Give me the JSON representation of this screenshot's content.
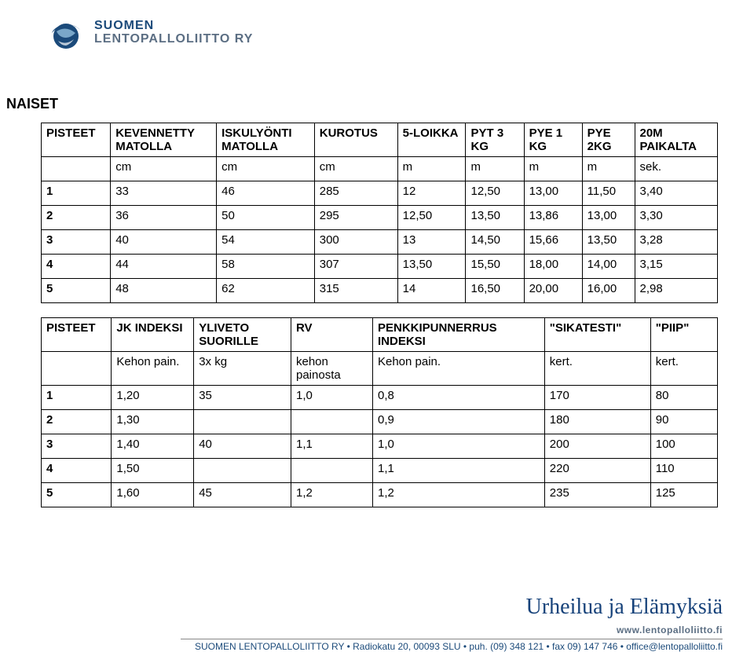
{
  "logo": {
    "line1": "SUOMEN",
    "line2": "LENTOPALLOLIITTO RY",
    "ball_outer": "#1b4a7a",
    "ball_inner": "#7aa7c9"
  },
  "section_title": "NAISET",
  "table1": {
    "columns": [
      {
        "header": "PISTEET",
        "unit": ""
      },
      {
        "header": "KEVENNETTY MATOLLA",
        "unit": "cm"
      },
      {
        "header": "ISKULYÖNTI MATOLLA",
        "unit": "cm"
      },
      {
        "header": "KUROTUS",
        "unit": "cm"
      },
      {
        "header": "5-LOIKKA",
        "unit": "m"
      },
      {
        "header": "PYT 3 KG",
        "unit": "m"
      },
      {
        "header": "PYE 1 KG",
        "unit": "m"
      },
      {
        "header": "PYE 2KG",
        "unit": "m"
      },
      {
        "header": "20M PAIKALTA",
        "unit": "sek."
      }
    ],
    "rows": [
      [
        "1",
        "33",
        "46",
        "285",
        "12",
        "12,50",
        "13,00",
        "11,50",
        "3,40"
      ],
      [
        "2",
        "36",
        "50",
        "295",
        "12,50",
        "13,50",
        "13,86",
        "13,00",
        "3,30"
      ],
      [
        "3",
        "40",
        "54",
        "300",
        "13",
        "14,50",
        "15,66",
        "13,50",
        "3,28"
      ],
      [
        "4",
        "44",
        "58",
        "307",
        "13,50",
        "15,50",
        "18,00",
        "14,00",
        "3,15"
      ],
      [
        "5",
        "48",
        "62",
        "315",
        "14",
        "16,50",
        "20,00",
        "16,00",
        "2,98"
      ]
    ]
  },
  "table2": {
    "columns": [
      {
        "header": "PISTEET",
        "unit": ""
      },
      {
        "header": "JK INDEKSI",
        "unit": "Kehon pain."
      },
      {
        "header": "YLIVETO SUORILLE",
        "unit": "3x kg"
      },
      {
        "header": "RV",
        "unit": "kehon painosta"
      },
      {
        "header": "PENKKIPUNNERRUS INDEKSI",
        "unit": "Kehon pain."
      },
      {
        "header": "\"SIKATESTI\"",
        "unit": "kert."
      },
      {
        "header": "\"PIIP\"",
        "unit": "kert."
      }
    ],
    "rows": [
      [
        "1",
        "1,20",
        "35",
        "1,0",
        "0,8",
        "170",
        "80"
      ],
      [
        "2",
        "1,30",
        "",
        "",
        "0,9",
        "180",
        "90"
      ],
      [
        "3",
        "1,40",
        "40",
        "1,1",
        "1,0",
        "200",
        "100"
      ],
      [
        "4",
        "1,50",
        "",
        "",
        "1,1",
        "220",
        "110"
      ],
      [
        "5",
        "1,60",
        "45",
        "1,2",
        "1,2",
        "235",
        "125"
      ]
    ]
  },
  "footer": {
    "script": "Urheilua ja Elämyksiä",
    "logo1": "www.lentopalloliitto.fi",
    "contact": "SUOMEN LENTOPALLOLIITTO RY • Radiokatu 20, 00093 SLU • puh. (09) 348 121 • fax 09) 147 746 • office@lentopalloliitto.fi"
  }
}
